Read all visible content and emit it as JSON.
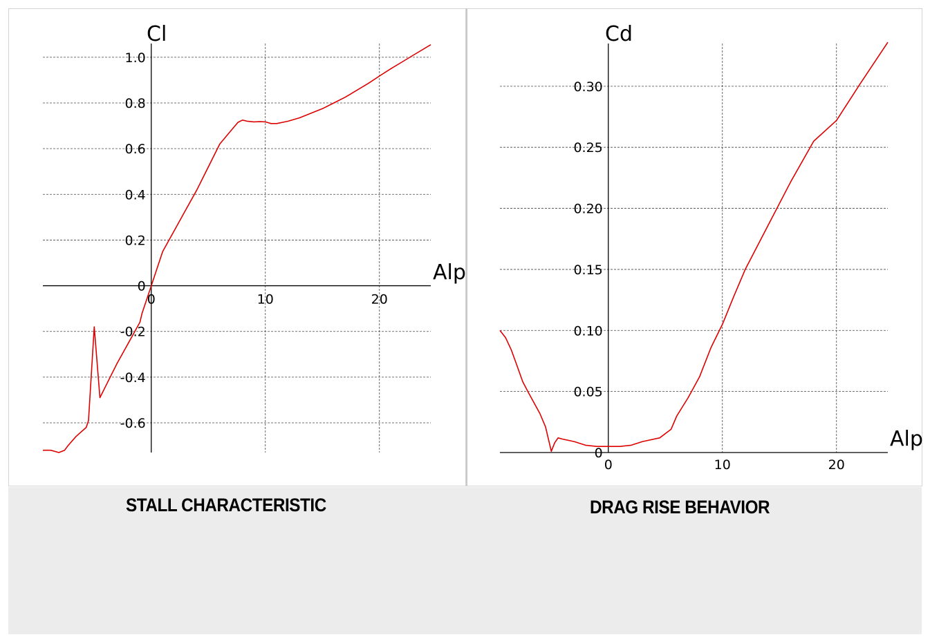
{
  "captions": {
    "left": "STALL CHARACTERISTIC",
    "right": "DRAG RISE BEHAVIOR"
  },
  "chart_data": [
    {
      "type": "line",
      "title": "STALL CHARACTERISTIC",
      "xlabel": "Alp",
      "ylabel": "Cl",
      "xlim": [
        -9.5,
        24.5
      ],
      "ylim": [
        -0.73,
        1.06
      ],
      "xticks": [
        0,
        10,
        20
      ],
      "xtick_labels": [
        "0",
        "10",
        "20"
      ],
      "yticks": [
        -0.6,
        -0.4,
        -0.2,
        0,
        0.2,
        0.4,
        0.6,
        0.8,
        1.0
      ],
      "ytick_labels": [
        "-0.6",
        "-0.4",
        "-0.2",
        "0",
        "0.2",
        "0.4",
        "0.6",
        "0.8",
        "1.0"
      ],
      "grid": true,
      "line_color": "#dd0000",
      "series": [
        {
          "x": [
            -9.5,
            -8.8,
            -8.1,
            -7.6,
            -7.3,
            -6.6,
            -5.7,
            -5.5,
            -5.0,
            -4.5,
            -3.9,
            -3.0,
            -2.0,
            -1.0,
            -0.8,
            -0.4,
            0.0,
            0.4,
            1.0,
            2.0,
            3.0,
            4.0,
            5.0,
            6.0,
            7.0,
            7.6,
            8.0,
            8.4,
            9.0,
            9.5,
            10.0,
            10.5,
            11.0,
            12.0,
            13.0,
            14.0,
            15.0,
            16.0,
            17.0,
            18.0,
            19.0,
            20.0,
            21.0,
            22.0,
            23.0,
            24.5
          ],
          "y": [
            -0.72,
            -0.72,
            -0.73,
            -0.72,
            -0.7,
            -0.66,
            -0.62,
            -0.59,
            -0.18,
            -0.49,
            -0.43,
            -0.34,
            -0.25,
            -0.16,
            -0.12,
            -0.06,
            0.0,
            0.06,
            0.15,
            0.24,
            0.33,
            0.42,
            0.52,
            0.62,
            0.68,
            0.715,
            0.725,
            0.72,
            0.717,
            0.718,
            0.717,
            0.71,
            0.71,
            0.72,
            0.735,
            0.755,
            0.775,
            0.8,
            0.825,
            0.855,
            0.885,
            0.918,
            0.95,
            0.98,
            1.01,
            1.055
          ]
        }
      ]
    },
    {
      "type": "line",
      "title": "DRAG RISE BEHAVIOR",
      "xlabel": "Alp",
      "ylabel": "Cd",
      "xlim": [
        -9.5,
        24.5
      ],
      "ylim": [
        0,
        0.335
      ],
      "xticks": [
        0,
        10,
        20
      ],
      "xtick_labels": [
        "0",
        "10",
        "20"
      ],
      "yticks": [
        0,
        0.05,
        0.1,
        0.15,
        0.2,
        0.25,
        0.3
      ],
      "ytick_labels": [
        "0",
        "0.05",
        "0.10",
        "0.15",
        "0.20",
        "0.25",
        "0.30"
      ],
      "grid": true,
      "line_color": "#dd0000",
      "series": [
        {
          "x": [
            -9.5,
            -9.0,
            -8.5,
            -8.0,
            -7.5,
            -7.0,
            -6.0,
            -5.5,
            -5.0,
            -4.7,
            -4.4,
            -4.0,
            -3.0,
            -2.0,
            -1.0,
            0.0,
            1.0,
            2.0,
            3.0,
            4.5,
            5.5,
            6.0,
            7.0,
            8.0,
            9.0,
            10.0,
            11.0,
            12.0,
            14.0,
            16.0,
            18.0,
            20.0,
            22.0,
            24.5
          ],
          "y": [
            0.1,
            0.094,
            0.084,
            0.071,
            0.058,
            0.049,
            0.032,
            0.021,
            0.001,
            0.008,
            0.012,
            0.011,
            0.009,
            0.006,
            0.005,
            0.005,
            0.005,
            0.006,
            0.009,
            0.012,
            0.019,
            0.03,
            0.045,
            0.062,
            0.086,
            0.105,
            0.128,
            0.15,
            0.186,
            0.222,
            0.255,
            0.272,
            0.301,
            0.336
          ]
        }
      ]
    }
  ]
}
